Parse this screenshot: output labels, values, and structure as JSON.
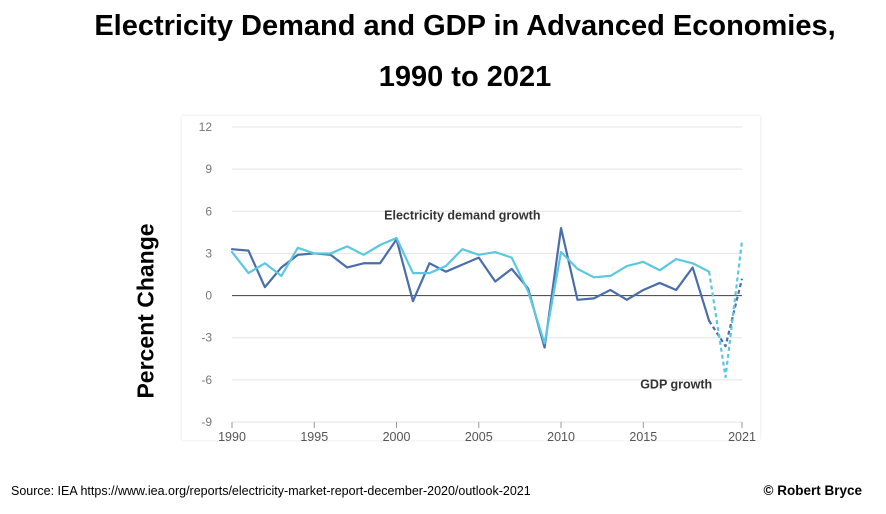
{
  "chart_data": {
    "type": "line",
    "title": "Electricity Demand and GDP in Advanced Economies,",
    "subtitle": "1990 to 2021",
    "ylabel": "Percent Change",
    "xlabel": "",
    "xlim": [
      1990,
      2021
    ],
    "ylim": [
      -9,
      12
    ],
    "yticks": [
      12,
      9,
      6,
      3,
      0,
      -3,
      -6,
      -9
    ],
    "xticks": [
      1990,
      1995,
      2000,
      2005,
      2010,
      2015,
      2021
    ],
    "grid": "horizontal",
    "x": [
      1990,
      1991,
      1992,
      1993,
      1994,
      1995,
      1996,
      1997,
      1998,
      1999,
      2000,
      2001,
      2002,
      2003,
      2004,
      2005,
      2006,
      2007,
      2008,
      2009,
      2010,
      2011,
      2012,
      2013,
      2014,
      2015,
      2016,
      2017,
      2018,
      2019,
      2020,
      2021
    ],
    "series": [
      {
        "name": "Electricity demand growth",
        "color": "#4a6ea9",
        "values": [
          3.3,
          3.2,
          0.6,
          2.0,
          2.9,
          3.0,
          2.9,
          2.0,
          2.3,
          2.3,
          4.0,
          -0.4,
          2.3,
          1.7,
          2.2,
          2.7,
          1.0,
          1.9,
          0.5,
          -3.7,
          4.8,
          -0.3,
          -0.2,
          0.4,
          -0.3,
          0.4,
          0.9,
          0.4,
          2.0,
          -1.8,
          -3.6,
          1.2
        ],
        "projected_from_index": 29
      },
      {
        "name": "GDP growth",
        "color": "#5bc8e0",
        "values": [
          3.1,
          1.6,
          2.3,
          1.4,
          3.4,
          3.0,
          3.0,
          3.5,
          2.9,
          3.6,
          4.1,
          1.6,
          1.6,
          2.1,
          3.3,
          2.9,
          3.1,
          2.7,
          0.3,
          -3.4,
          3.1,
          1.9,
          1.3,
          1.4,
          2.1,
          2.4,
          1.8,
          2.6,
          2.3,
          1.7,
          -5.8,
          3.9
        ],
        "projected_from_index": 29
      }
    ],
    "annotations": [
      {
        "text": "Electricity demand growth",
        "x": 2004,
        "y": 5.4
      },
      {
        "text": "GDP growth",
        "x": 2017,
        "y": -6.6
      }
    ]
  },
  "footer": {
    "source": "Source: IEA https://www.iea.org/reports/electricity-market-report-december-2020/outlook-2021",
    "copyright": "© Robert Bryce"
  }
}
